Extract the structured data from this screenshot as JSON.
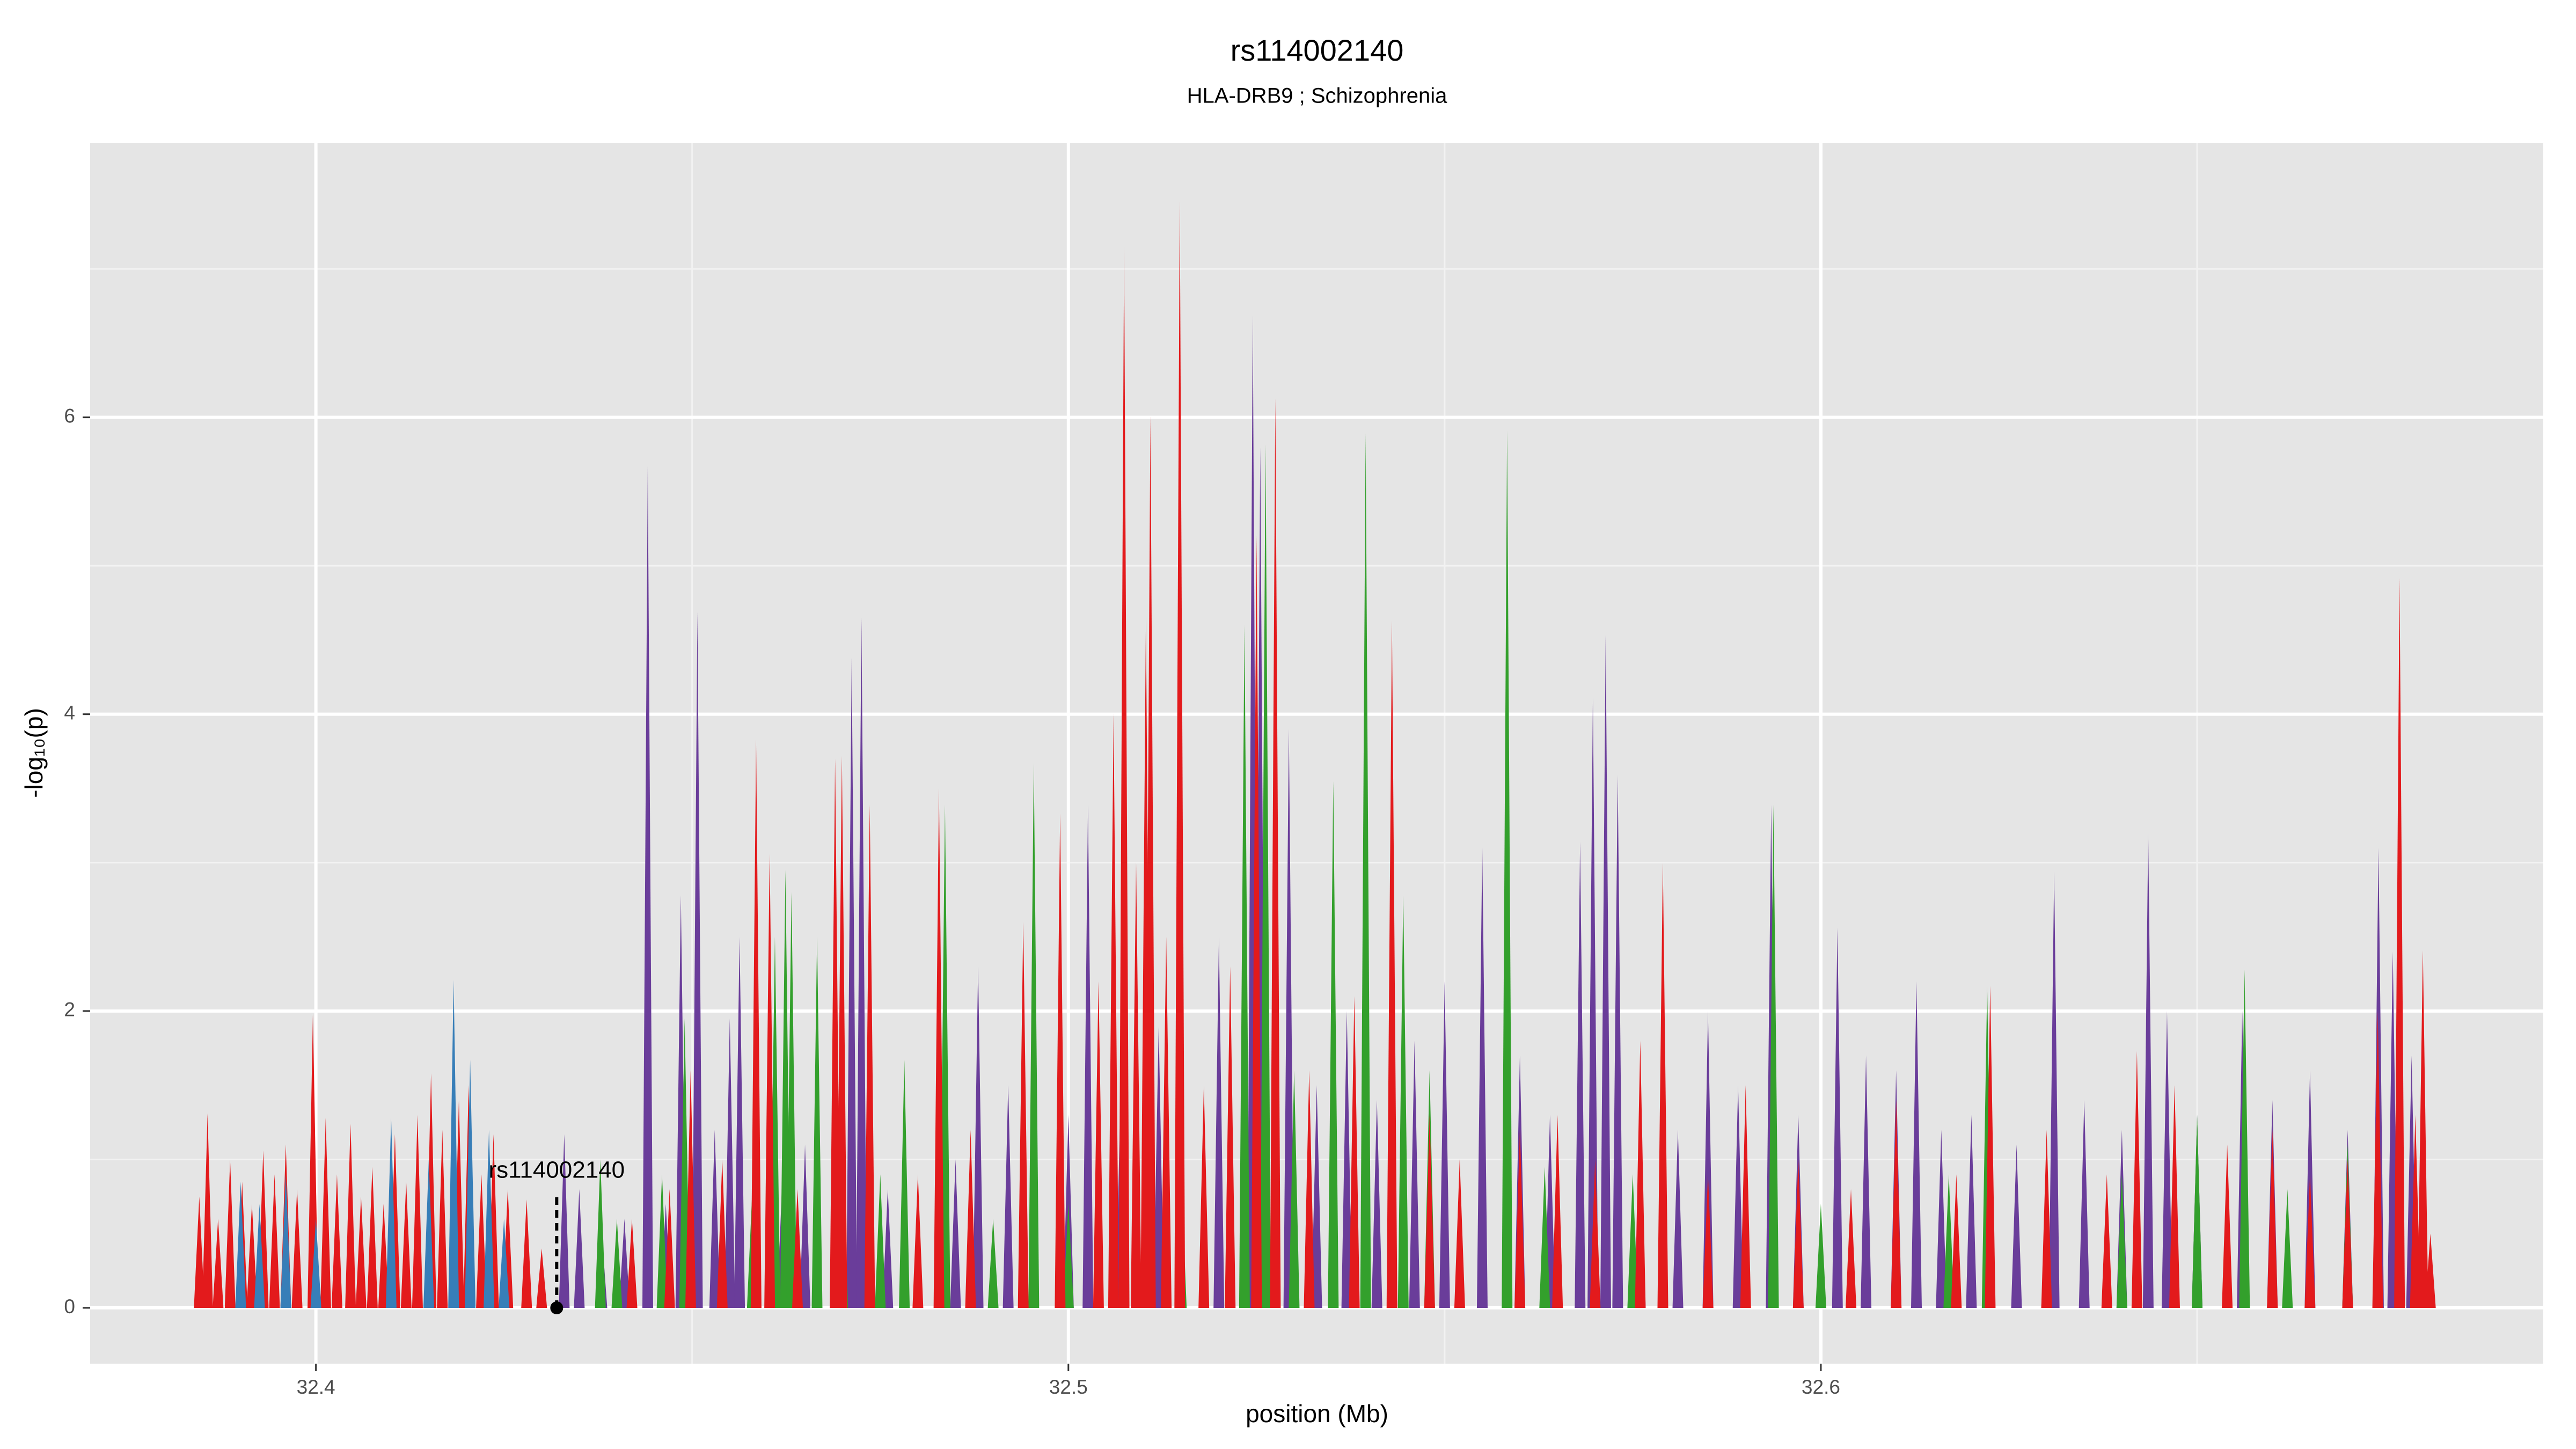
{
  "chart_data": {
    "type": "spike",
    "title": "rs114002140",
    "subtitle": "HLA-DRB9 ; Schizophrenia",
    "x_label": "position (Mb)",
    "y_label": "-log₁₀(p)",
    "xlim": [
      32.37,
      32.696
    ],
    "ylim": [
      -0.376,
      7.85
    ],
    "xticks": [
      32.4,
      32.5,
      32.6
    ],
    "yticks": [
      0,
      2,
      4,
      6
    ],
    "xminor": [
      32.45,
      32.55,
      32.65
    ],
    "yminor": [
      1,
      3,
      5,
      7
    ],
    "grid": true,
    "annotation": {
      "text": "rs114002140",
      "x": 32.432,
      "y": 0
    },
    "series": [
      {
        "color": "#6a3d9a",
        "x": [
          32.433,
          32.435,
          32.438,
          32.441,
          32.4441,
          32.4465,
          32.4485,
          32.4507,
          32.453,
          32.455,
          32.4563,
          32.462,
          32.465,
          32.4712,
          32.4725,
          32.476,
          32.485,
          32.488,
          32.492,
          32.5,
          32.5026,
          32.507,
          32.512,
          32.52,
          32.5245,
          32.5255,
          32.5293,
          32.533,
          32.537,
          32.541,
          32.546,
          32.55,
          32.555,
          32.56,
          32.564,
          32.568,
          32.5697,
          32.5714,
          32.573,
          32.576,
          32.581,
          32.585,
          32.589,
          32.5934,
          32.597,
          32.6022,
          32.606,
          32.61,
          32.6127,
          32.616,
          32.62,
          32.626,
          32.631,
          32.635,
          32.64,
          32.6435,
          32.646,
          32.65,
          32.656,
          32.66,
          32.665,
          32.67,
          32.6741,
          32.676,
          32.6785
        ],
        "values": [
          1.17,
          0.8,
          0.5,
          0.6,
          5.67,
          0.7,
          2.78,
          4.69,
          1.2,
          1.95,
          2.5,
          0.9,
          1.1,
          4.38,
          4.65,
          0.8,
          1.0,
          2.3,
          1.5,
          1.3,
          3.39,
          1.6,
          1.9,
          2.5,
          6.69,
          5.8,
          3.9,
          1.5,
          2.0,
          1.4,
          1.8,
          2.2,
          3.11,
          1.7,
          1.3,
          3.14,
          4.11,
          4.53,
          3.59,
          1.3,
          1.2,
          2.0,
          1.5,
          3.39,
          1.3,
          2.56,
          1.7,
          1.6,
          2.2,
          1.2,
          1.3,
          1.1,
          2.94,
          1.4,
          1.2,
          3.2,
          2.0,
          1.3,
          2.0,
          1.4,
          1.6,
          1.2,
          3.1,
          2.4,
          1.7
        ]
      },
      {
        "color": "#33a02c",
        "x": [
          32.4378,
          32.44,
          32.446,
          32.449,
          32.458,
          32.461,
          32.4624,
          32.4632,
          32.4666,
          32.47,
          32.475,
          32.4782,
          32.4836,
          32.49,
          32.4954,
          32.5,
          32.515,
          32.5234,
          32.5262,
          32.53,
          32.5352,
          32.5395,
          32.5445,
          32.548,
          32.5583,
          32.5633,
          32.57,
          32.575,
          32.5937,
          32.6,
          32.617,
          32.6221,
          32.63,
          32.64,
          32.65,
          32.6563,
          32.662,
          32.67
        ],
        "values": [
          1.0,
          0.6,
          0.9,
          1.95,
          0.8,
          2.5,
          2.95,
          2.8,
          2.5,
          1.2,
          0.9,
          1.67,
          3.39,
          0.6,
          3.67,
          0.7,
          0.9,
          4.6,
          5.82,
          1.6,
          3.55,
          5.89,
          2.78,
          1.6,
          5.91,
          0.95,
          0.8,
          0.9,
          3.39,
          0.7,
          0.9,
          2.17,
          0.7,
          0.9,
          1.3,
          2.28,
          0.8,
          1.1
        ]
      },
      {
        "color": "#e31a1c",
        "x": [
          32.3845,
          32.3856,
          32.387,
          32.3886,
          32.3902,
          32.3915,
          32.393,
          32.3945,
          32.396,
          32.3975,
          32.3996,
          32.4013,
          32.4028,
          32.4046,
          32.406,
          32.4075,
          32.409,
          32.4105,
          32.412,
          32.4135,
          32.4153,
          32.4168,
          32.419,
          32.4203,
          32.422,
          32.4236,
          32.4255,
          32.428,
          32.43,
          32.442,
          32.447,
          32.4498,
          32.454,
          32.4585,
          32.4603,
          32.464,
          32.469,
          32.4699,
          32.4736,
          32.48,
          32.4828,
          32.487,
          32.494,
          32.4989,
          32.504,
          32.506,
          32.5074,
          32.509,
          32.5103,
          32.5109,
          32.513,
          32.5148,
          32.518,
          32.5215,
          32.525,
          32.5275,
          32.532,
          32.538,
          32.543,
          32.548,
          32.552,
          32.56,
          32.565,
          32.57,
          32.576,
          32.579,
          32.585,
          32.59,
          32.597,
          32.604,
          32.61,
          32.618,
          32.6225,
          32.63,
          32.638,
          32.642,
          32.647,
          32.654,
          32.66,
          32.665,
          32.67,
          32.674,
          32.6769,
          32.679,
          32.68,
          32.681
        ],
        "values": [
          0.75,
          1.31,
          0.6,
          1.0,
          0.85,
          0.7,
          1.06,
          0.9,
          1.1,
          0.8,
          1.98,
          1.28,
          0.9,
          1.24,
          0.75,
          0.95,
          0.7,
          1.17,
          0.85,
          1.3,
          1.58,
          1.2,
          1.4,
          1.5,
          0.9,
          1.17,
          0.8,
          0.73,
          0.4,
          0.6,
          0.8,
          1.6,
          1.0,
          3.83,
          3.06,
          0.8,
          3.7,
          3.72,
          3.39,
          0.9,
          3.5,
          1.2,
          2.6,
          3.33,
          2.2,
          4.0,
          7.15,
          3.0,
          4.66,
          6.01,
          2.5,
          7.46,
          1.5,
          2.3,
          5.2,
          6.13,
          1.6,
          2.1,
          4.63,
          1.3,
          1.0,
          1.2,
          1.3,
          1.0,
          1.8,
          3.0,
          0.9,
          1.5,
          1.0,
          0.8,
          1.4,
          0.9,
          2.17,
          1.2,
          0.9,
          1.73,
          1.5,
          1.1,
          1.2,
          0.9,
          1.0,
          2.0,
          4.92,
          1.3,
          2.41,
          0.5
        ]
      },
      {
        "color": "#377eb8",
        "x": [
          32.39,
          32.3925,
          32.396,
          32.4,
          32.41,
          32.415,
          32.4183,
          32.4205,
          32.423,
          32.425
        ],
        "values": [
          0.85,
          0.7,
          0.9,
          0.6,
          1.28,
          1.0,
          2.21,
          1.67,
          1.2,
          0.6
        ]
      }
    ]
  }
}
